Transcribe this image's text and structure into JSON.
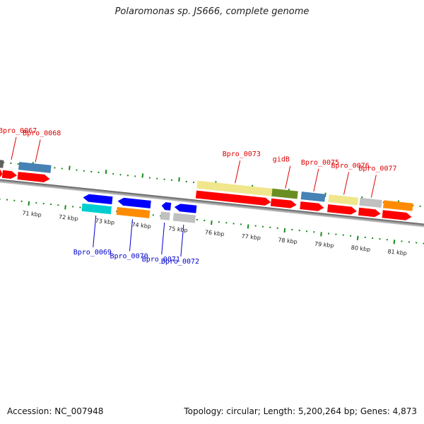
{
  "title": "Polaromonas sp. JS666, complete genome",
  "footer": {
    "accession": "Accession: NC_007948",
    "summary": "Topology: circular; Length: 5,200,264 bp; Genes: 4,873"
  },
  "axis": {
    "unit": "kbp",
    "tick_labels": [
      "71 kbp",
      "72 kbp",
      "73 kbp",
      "74 kbp",
      "75 kbp",
      "76 kbp",
      "77 kbp",
      "78 kbp",
      "79 kbp",
      "80 kbp",
      "81 kbp"
    ],
    "tick_values_kbp": [
      71,
      72,
      73,
      74,
      75,
      76,
      77,
      78,
      79,
      80,
      81
    ]
  },
  "colors": {
    "cds": "#ff0000",
    "cds_rev": "#0000ff",
    "backbone": "#808080",
    "ticks": "#1a8a1a",
    "label_top": "#e00000",
    "label_bottom": "#0000cc"
  },
  "forward_features": [
    {
      "start_kbp": 69.4,
      "end_kbp": 69.85,
      "cog_color": null,
      "label": null
    },
    {
      "start_kbp": 70.05,
      "end_kbp": 70.2,
      "cog_color": "#606060",
      "label": null
    },
    {
      "start_kbp": 70.2,
      "end_kbp": 70.6,
      "cog_color": null,
      "label": "Bpro_0067"
    },
    {
      "start_kbp": 70.62,
      "end_kbp": 71.5,
      "cog_color": "#4682b4",
      "label": "Bpro_0068"
    },
    {
      "start_kbp": 75.5,
      "end_kbp": 77.55,
      "cog_color": "#f0e68c",
      "label": "Bpro_0073"
    },
    {
      "start_kbp": 77.55,
      "end_kbp": 78.25,
      "cog_color": "#6b8e23",
      "label": "gidB"
    },
    {
      "start_kbp": 78.35,
      "end_kbp": 79.0,
      "cog_color": "#4682b4",
      "label": "Bpro_0075"
    },
    {
      "start_kbp": 79.1,
      "end_kbp": 79.9,
      "cog_color": "#f0e68c",
      "label": "Bpro_0076"
    },
    {
      "start_kbp": 79.95,
      "end_kbp": 80.55,
      "cog_color": "#c0c0c0",
      "label": "Bpro_0077"
    },
    {
      "start_kbp": 80.6,
      "end_kbp": 81.4,
      "cog_color": "#ff8c00",
      "label": null
    }
  ],
  "reverse_features": [
    {
      "start_kbp": 72.45,
      "end_kbp": 73.25,
      "cog_color": "#00ced1",
      "label": "Bpro_0069"
    },
    {
      "start_kbp": 73.4,
      "end_kbp": 74.3,
      "cog_color": "#ff8c00",
      "label": "Bpro_0070"
    },
    {
      "start_kbp": 74.6,
      "end_kbp": 74.85,
      "cog_color": "#c0c0c0",
      "label": "Bpro_0071"
    },
    {
      "start_kbp": 74.95,
      "end_kbp": 75.55,
      "cog_color": "#c0c0c0",
      "label": "Bpro_0072"
    }
  ]
}
